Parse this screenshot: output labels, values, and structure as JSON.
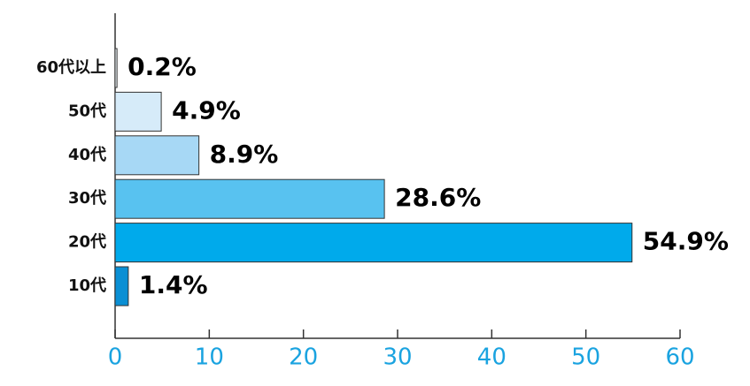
{
  "chart_data": {
    "type": "bar",
    "orientation": "horizontal",
    "categories": [
      "60代以上",
      "50代",
      "40代",
      "30代",
      "20代",
      "10代"
    ],
    "values": [
      0.2,
      4.9,
      8.9,
      28.6,
      54.9,
      1.4
    ],
    "value_labels": [
      "0.2%",
      "4.9%",
      "8.9%",
      "28.6%",
      "54.9%",
      "1.4%"
    ],
    "colors": [
      "#f2f9fd",
      "#d6ebf9",
      "#a7d8f5",
      "#58c2f0",
      "#00aaeb",
      "#0a8fd4"
    ],
    "xlim": [
      0,
      60
    ],
    "xticks": [
      0,
      10,
      20,
      30,
      40,
      50,
      60
    ]
  }
}
